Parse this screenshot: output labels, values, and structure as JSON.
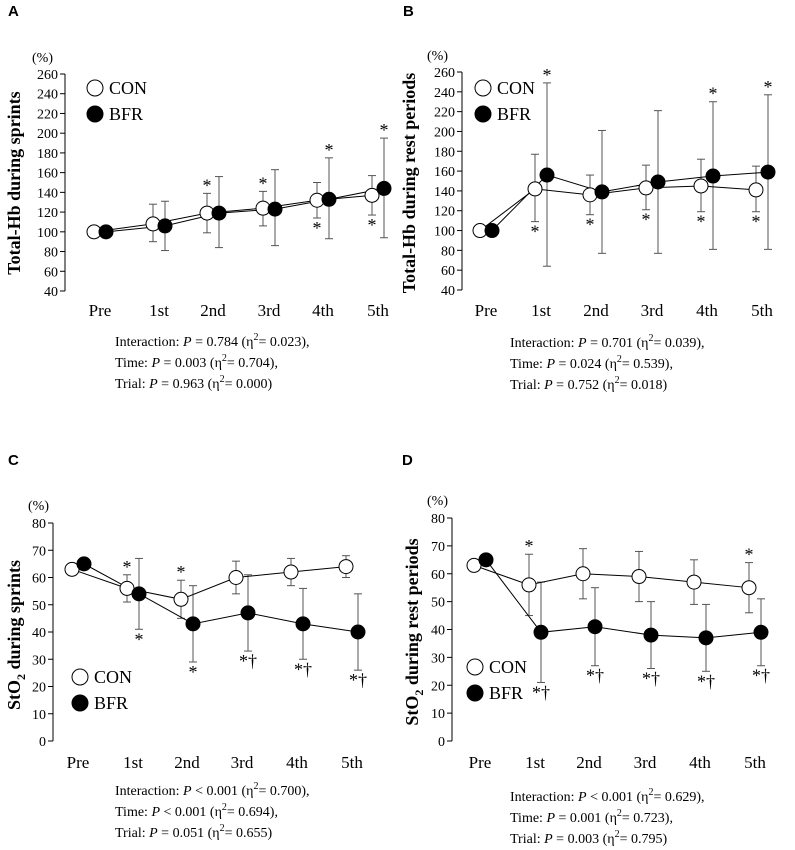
{
  "chart_data": [
    {
      "type": "line",
      "panel": "A",
      "y_unit": "(%)",
      "ylabel": "Total-Hb during sprints",
      "ylim": [
        40,
        260
      ],
      "yticks": [
        40,
        60,
        80,
        100,
        120,
        140,
        160,
        180,
        200,
        220,
        240,
        260
      ],
      "categories": [
        "Pre",
        "1st",
        "2nd",
        "3rd",
        "4th",
        "5th"
      ],
      "series": [
        {
          "name": "CON",
          "values": [
            100,
            108,
            119,
            124,
            132,
            137
          ],
          "err_up": [
            0,
            20,
            20,
            17,
            18,
            20
          ],
          "err_down": [
            0,
            18,
            20,
            18,
            18,
            20
          ]
        },
        {
          "name": "BFR",
          "values": [
            100,
            106,
            119,
            123,
            133,
            144
          ],
          "err_up": [
            0,
            25,
            37,
            40,
            42,
            51
          ],
          "err_down": [
            0,
            25,
            35,
            37,
            40,
            50
          ]
        }
      ],
      "annotations": [
        {
          "cat": 2,
          "series": "CON",
          "pos": "above",
          "text": "*"
        },
        {
          "cat": 3,
          "series": "CON",
          "pos": "above",
          "text": "*"
        },
        {
          "cat": 4,
          "series": "BFR",
          "pos": "above",
          "text": "*"
        },
        {
          "cat": 4,
          "series": "CON",
          "pos": "below",
          "text": "*"
        },
        {
          "cat": 5,
          "series": "BFR",
          "pos": "above",
          "text": "*"
        },
        {
          "cat": 5,
          "series": "CON",
          "pos": "below",
          "text": "*"
        }
      ],
      "legend": "top-left",
      "stats": [
        {
          "label": "Interaction: ",
          "p": "P",
          "rest": " = 0.784 (η",
          "sup": "2",
          "tail": "= 0.023),"
        },
        {
          "label": "Time: ",
          "p": "P",
          "rest": " = 0.003 (η",
          "sup": "2",
          "tail": "= 0.704),"
        },
        {
          "label": "Trial: ",
          "p": "P",
          "rest": " = 0.963 (η",
          "sup": "2",
          "tail": "= 0.000)"
        }
      ]
    },
    {
      "type": "line",
      "panel": "B",
      "y_unit": "(%)",
      "ylabel": "Total-Hb during rest periods",
      "ylim": [
        40,
        260
      ],
      "yticks": [
        40,
        60,
        80,
        100,
        120,
        140,
        160,
        180,
        200,
        220,
        240,
        260
      ],
      "categories": [
        "Pre",
        "1st",
        "2nd",
        "3rd",
        "4th",
        "5th"
      ],
      "series": [
        {
          "name": "CON",
          "values": [
            100,
            142,
            136,
            143,
            145,
            141
          ],
          "err_up": [
            0,
            35,
            20,
            23,
            27,
            24
          ],
          "err_down": [
            0,
            33,
            20,
            22,
            26,
            22
          ]
        },
        {
          "name": "BFR",
          "values": [
            100,
            156,
            139,
            149,
            155,
            159
          ],
          "err_up": [
            0,
            93,
            62,
            72,
            75,
            78
          ],
          "err_down": [
            0,
            92,
            62,
            72,
            74,
            78
          ]
        }
      ],
      "annotations": [
        {
          "cat": 1,
          "series": "BFR",
          "pos": "above",
          "text": "*"
        },
        {
          "cat": 1,
          "series": "CON",
          "pos": "below",
          "text": "*"
        },
        {
          "cat": 2,
          "series": "CON",
          "pos": "below",
          "text": "*"
        },
        {
          "cat": 3,
          "series": "CON",
          "pos": "below",
          "text": "*"
        },
        {
          "cat": 4,
          "series": "BFR",
          "pos": "above",
          "text": "*"
        },
        {
          "cat": 4,
          "series": "CON",
          "pos": "below",
          "text": "*"
        },
        {
          "cat": 5,
          "series": "BFR",
          "pos": "above",
          "text": "*"
        },
        {
          "cat": 5,
          "series": "CON",
          "pos": "below",
          "text": "*"
        }
      ],
      "legend": "top-left",
      "stats": [
        {
          "label": "Interaction: ",
          "p": "P",
          "rest": " = 0.701 (η",
          "sup": "2",
          "tail": "= 0.039),"
        },
        {
          "label": "Time: ",
          "p": "P",
          "rest": " = 0.024 (η",
          "sup": "2",
          "tail": "= 0.539),"
        },
        {
          "label": "Trial: ",
          "p": "P",
          "rest": " = 0.752 (η",
          "sup": "2",
          "tail": "= 0.018)"
        }
      ]
    },
    {
      "type": "line",
      "panel": "C",
      "y_unit": "(%)",
      "ylabel": "StO",
      "ylabel_sub": "2",
      "ylabel_rest": " during sprints",
      "ylim": [
        0,
        80
      ],
      "yticks": [
        0,
        10,
        20,
        30,
        40,
        50,
        60,
        70,
        80
      ],
      "categories": [
        "Pre",
        "1st",
        "2nd",
        "3rd",
        "4th",
        "5th"
      ],
      "series": [
        {
          "name": "CON",
          "values": [
            63,
            56,
            52,
            60,
            62,
            64
          ],
          "err_up": [
            5,
            5,
            7,
            6,
            5,
            4
          ],
          "err_down": [
            5,
            5,
            7,
            6,
            5,
            4
          ]
        },
        {
          "name": "BFR",
          "values": [
            65,
            54,
            43,
            47,
            43,
            40
          ],
          "err_up": [
            5,
            13,
            14,
            14,
            13,
            14
          ],
          "err_down": [
            5,
            13,
            14,
            14,
            13,
            14
          ]
        }
      ],
      "annotations": [
        {
          "cat": 1,
          "series": "CON",
          "pos": "above",
          "text": "*"
        },
        {
          "cat": 1,
          "series": "BFR",
          "pos": "below",
          "text": "*"
        },
        {
          "cat": 2,
          "series": "CON",
          "pos": "above",
          "text": "*"
        },
        {
          "cat": 2,
          "series": "BFR",
          "pos": "below",
          "text": "*"
        },
        {
          "cat": 3,
          "series": "BFR",
          "pos": "below",
          "text": "*†"
        },
        {
          "cat": 4,
          "series": "BFR",
          "pos": "below",
          "text": "*†"
        },
        {
          "cat": 5,
          "series": "BFR",
          "pos": "below",
          "text": "*†"
        }
      ],
      "legend": "bottom-left",
      "stats": [
        {
          "label": "Interaction: ",
          "p": "P",
          "rest": " < 0.001 (η",
          "sup": "2",
          "tail": "= 0.700),"
        },
        {
          "label": "Time: ",
          "p": "P",
          "rest": " < 0.001 (η",
          "sup": "2",
          "tail": "= 0.694),"
        },
        {
          "label": "Trial: ",
          "p": "P",
          "rest": " = 0.051 (η",
          "sup": "2",
          "tail": "= 0.655)"
        }
      ]
    },
    {
      "type": "line",
      "panel": "D",
      "y_unit": "(%)",
      "ylabel": "StO",
      "ylabel_sub": "2",
      "ylabel_rest": " during rest periods",
      "ylim": [
        0,
        80
      ],
      "yticks": [
        0,
        10,
        20,
        30,
        40,
        50,
        60,
        70,
        80
      ],
      "categories": [
        "Pre",
        "1st",
        "2nd",
        "3rd",
        "4th",
        "5th"
      ],
      "series": [
        {
          "name": "CON",
          "values": [
            63,
            56,
            60,
            59,
            57,
            55
          ],
          "err_up": [
            5,
            11,
            9,
            9,
            8,
            9
          ],
          "err_down": [
            5,
            11,
            9,
            9,
            8,
            9
          ]
        },
        {
          "name": "BFR",
          "values": [
            65,
            39,
            41,
            38,
            37,
            39
          ],
          "err_up": [
            5,
            18,
            14,
            12,
            12,
            12
          ],
          "err_down": [
            5,
            18,
            14,
            12,
            12,
            12
          ]
        }
      ],
      "annotations": [
        {
          "cat": 1,
          "series": "CON",
          "pos": "above",
          "text": "*"
        },
        {
          "cat": 1,
          "series": "BFR",
          "pos": "below",
          "text": "*†"
        },
        {
          "cat": 2,
          "series": "BFR",
          "pos": "below",
          "text": "*†"
        },
        {
          "cat": 3,
          "series": "BFR",
          "pos": "below",
          "text": "*†"
        },
        {
          "cat": 4,
          "series": "BFR",
          "pos": "below",
          "text": "*†"
        },
        {
          "cat": 5,
          "series": "CON",
          "pos": "above",
          "text": "*"
        },
        {
          "cat": 5,
          "series": "BFR",
          "pos": "below",
          "text": "*†"
        }
      ],
      "legend": "bottom-left",
      "stats": [
        {
          "label": "Interaction: ",
          "p": "P",
          "rest": " < 0.001 (η",
          "sup": "2",
          "tail": "= 0.629),"
        },
        {
          "label": "Time: ",
          "p": "P",
          "rest": " = 0.001 (η",
          "sup": "2",
          "tail": "= 0.723),"
        },
        {
          "label": "Trial: ",
          "p": "P",
          "rest": " = 0.003 (η",
          "sup": "2",
          "tail": "= 0.795)"
        }
      ]
    }
  ]
}
